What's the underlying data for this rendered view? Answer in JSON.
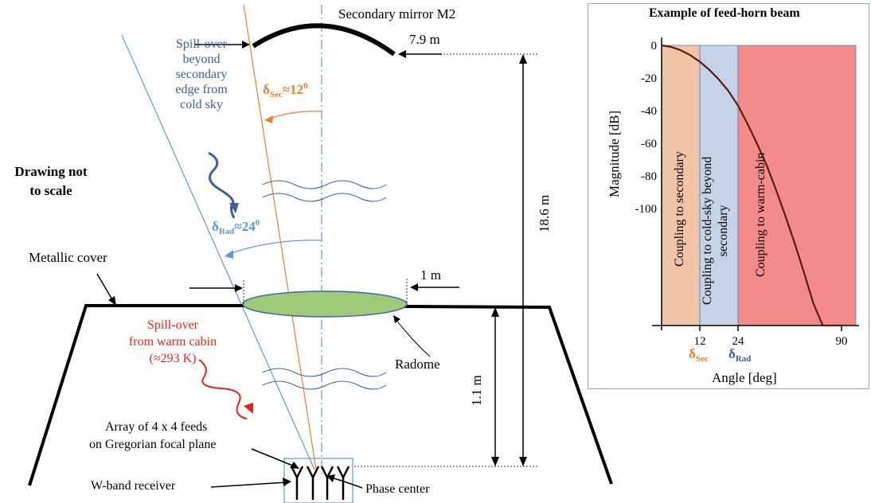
{
  "labels": {
    "secondary_mirror": "Secondary mirror M2",
    "mirror_width": "7.9 m",
    "spill_sky": [
      "Spill-over",
      "beyond",
      "secondary",
      "edge from",
      "cold sky"
    ],
    "delta_sec_base": "δ",
    "delta_sec_sub": "Sec",
    "delta_sec_val": "≈12",
    "delta_sup": "0",
    "delta_rad_base": "δ",
    "delta_rad_sub": "Rad",
    "delta_rad_val": "≈24",
    "not_to_scale": [
      "Drawing not",
      "to scale"
    ],
    "metallic_cover": "Metallic cover",
    "radome_width": "1 m",
    "radome": "Radome",
    "spill_warm": [
      "Spill-over",
      "from warm cabin",
      "(≈293 K)"
    ],
    "height_total": "18.6 m",
    "height_cabin": "1.1 m",
    "array": [
      "Array of 4 x 4 feeds",
      "on Gregorian focal plane"
    ],
    "receiver": "W-band receiver",
    "phase_center": "Phase center"
  },
  "panel": {
    "title": "Example of feed-horn beam",
    "ylabel": "Magnitude [dB]",
    "xlabel": "Angle [deg]",
    "region_labels": {
      "secondary": "Coupling to secondary",
      "cold_sky": [
        "Coupling to cold-sky beyond",
        "secondary"
      ],
      "warm_cabin": "Coupling to warm-cabin"
    },
    "delta_sec_base": "δ",
    "delta_sec_sub": "Sec",
    "delta_rad_base": "δ",
    "delta_rad_sub": "Rad"
  },
  "chart_data": {
    "type": "line",
    "title": "Example of feed-horn beam",
    "xlabel": "Angle [deg]",
    "ylabel": "Magnitude [dB]",
    "x_ticks": [
      "12",
      "24",
      "90"
    ],
    "y_ticks": [
      "0",
      "-20",
      "-40",
      "-60",
      "-80",
      "-100"
    ],
    "regions": [
      {
        "name": "Coupling to secondary",
        "from": 0,
        "to": 12,
        "color": "#f0c4a4"
      },
      {
        "name": "Coupling to cold-sky beyond secondary",
        "from": 12,
        "to": 24,
        "color": "#c5d3e8"
      },
      {
        "name": "Coupling to warm-cabin",
        "from": 24,
        "to": 90,
        "color": "#f48b8b"
      }
    ],
    "series": [
      {
        "x": [
          0,
          3,
          6,
          9,
          12,
          15,
          18,
          21,
          24,
          30,
          36,
          42,
          48,
          54,
          60,
          66,
          72,
          78,
          84,
          90
        ],
        "y": [
          0,
          -1,
          -3,
          -6,
          -10,
          -15,
          -21,
          -28,
          -37,
          -48,
          -60,
          -73,
          -88,
          -104,
          -121,
          -139,
          -158,
          -178,
          -200,
          -222
        ],
        "color": "#5a1a14"
      }
    ]
  }
}
